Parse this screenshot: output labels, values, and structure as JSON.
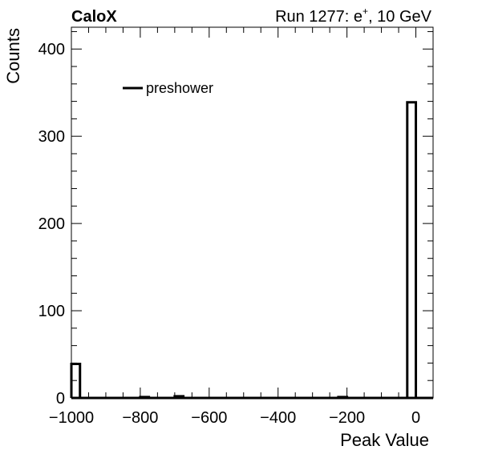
{
  "header": {
    "experiment": "CaloX",
    "run_info": "Run 1277: e",
    "run_sup": "+",
    "run_tail": ", 10 GeV"
  },
  "chart_data": {
    "type": "bar",
    "title": "",
    "xlabel": "Peak Value",
    "ylabel": "Counts",
    "xlim": [
      -1000,
      50
    ],
    "ylim": [
      0,
      425
    ],
    "x_ticks": [
      -1000,
      -800,
      -600,
      -400,
      -200,
      0
    ],
    "x_tick_labels": [
      "−1000",
      "−800",
      "−600",
      "−400",
      "−200",
      "0"
    ],
    "y_ticks": [
      0,
      100,
      200,
      300,
      400
    ],
    "y_tick_labels": [
      "0",
      "100",
      "200",
      "300",
      "400"
    ],
    "bin_width": 25,
    "legend_position": "top-left",
    "series": [
      {
        "name": "preshower",
        "color": "#000000",
        "bins": [
          {
            "x_low": -1000,
            "x_high": -975,
            "count": 39
          },
          {
            "x_low": -800,
            "x_high": -775,
            "count": 1
          },
          {
            "x_low": -700,
            "x_high": -675,
            "count": 2
          },
          {
            "x_low": -225,
            "x_high": -200,
            "count": 1
          },
          {
            "x_low": -25,
            "x_high": 0,
            "count": 339
          }
        ]
      }
    ]
  }
}
